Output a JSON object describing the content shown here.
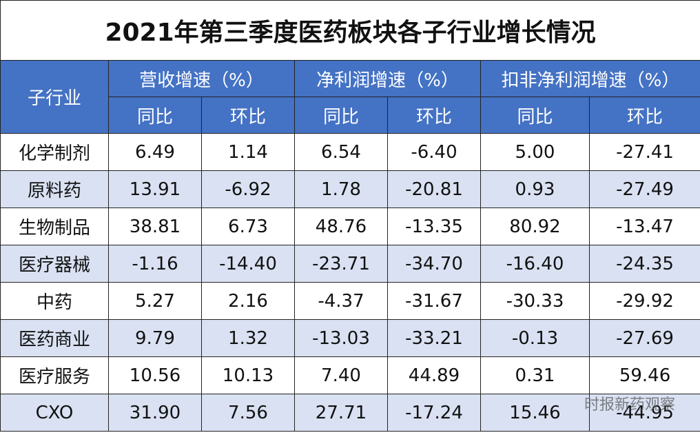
{
  "title": "2021年第三季度医药板块各子行业增长情况",
  "header": {
    "row_label": "子行业",
    "groups": [
      {
        "label": "营收增速（%）",
        "sub": [
          "同比",
          "环比"
        ]
      },
      {
        "label": "净利润增速（%）",
        "sub": [
          "同比",
          "环比"
        ]
      },
      {
        "label": "扣非净利润增速（%）",
        "sub": [
          "同比",
          "环比"
        ]
      }
    ]
  },
  "table": {
    "rows": [
      [
        "化学制剂",
        "6.49",
        "1.14",
        "6.54",
        "-6.40",
        "5.00",
        "-27.41"
      ],
      [
        "原料药",
        "13.91",
        "-6.92",
        "1.78",
        "-20.81",
        "0.93",
        "-27.49"
      ],
      [
        "生物制品",
        "38.81",
        "6.73",
        "48.76",
        "-13.35",
        "80.92",
        "-13.47"
      ],
      [
        "医疗器械",
        "-1.16",
        "-14.40",
        "-23.71",
        "-34.70",
        "-16.40",
        "-24.35"
      ],
      [
        "中药",
        "5.27",
        "2.16",
        "-4.37",
        "-31.67",
        "-30.33",
        "-29.92"
      ],
      [
        "医药商业",
        "9.79",
        "1.32",
        "-13.03",
        "-33.21",
        "-0.13",
        "-27.69"
      ],
      [
        "医疗服务",
        "10.56",
        "10.13",
        "7.40",
        "44.89",
        "0.31",
        "59.46"
      ],
      [
        "CXO",
        "31.90",
        "7.56",
        "27.71",
        "-17.24",
        "15.46",
        "-44.95"
      ]
    ]
  },
  "watermark": "时报新药观察"
}
